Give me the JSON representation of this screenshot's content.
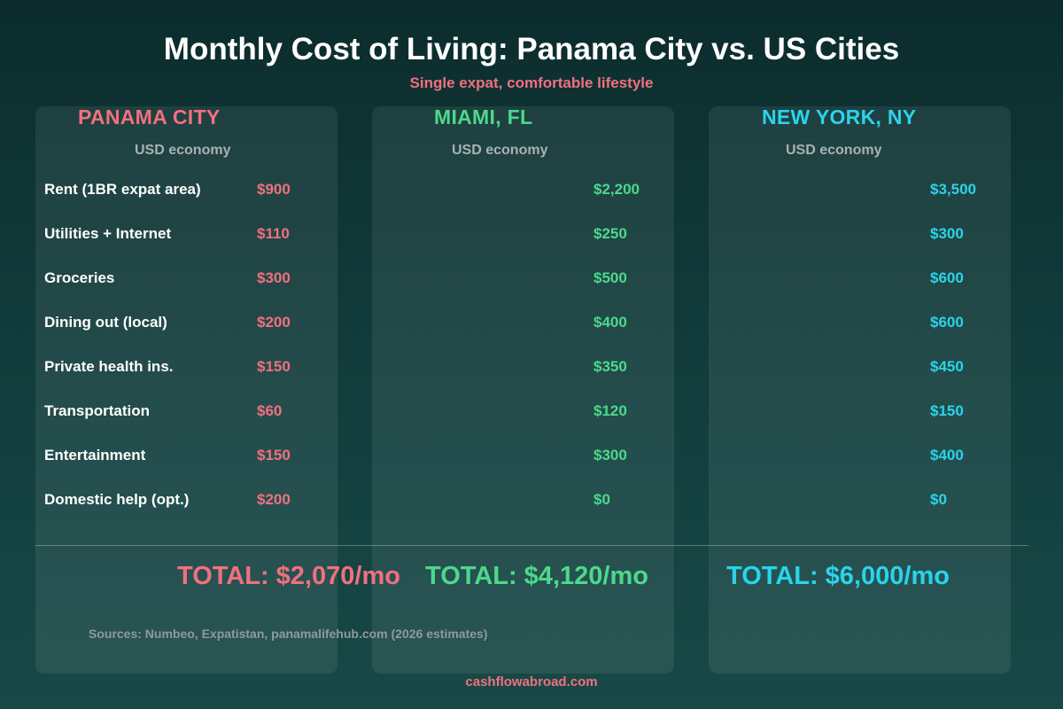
{
  "title": "Monthly Cost of Living: Panama City vs. US Cities",
  "subtitle": "Single expat, comfortable lifestyle",
  "colors": {
    "panama": "#f2707e",
    "miami": "#4cd98a",
    "newyork": "#2ad4ea"
  },
  "chart_data": {
    "type": "table",
    "title": "Monthly Cost of Living: Panama City vs. US Cities",
    "subtitle": "Single expat, comfortable lifestyle",
    "categories": [
      "Rent (1BR expat area)",
      "Utilities + Internet",
      "Groceries",
      "Dining out (local)",
      "Private health ins.",
      "Transportation",
      "Entertainment",
      "Domestic help (opt.)"
    ],
    "series": [
      {
        "name": "PANAMA CITY",
        "note": "USD economy",
        "labels": [
          "$900",
          "$110",
          "$300",
          "$200",
          "$150",
          "$60",
          "$150",
          "$200"
        ],
        "values": [
          900,
          110,
          300,
          200,
          150,
          60,
          150,
          200
        ],
        "total_label": "TOTAL: $2,070/mo",
        "total": 2070
      },
      {
        "name": "MIAMI, FL",
        "note": "USD economy",
        "labels": [
          "$2,200",
          "$250",
          "$500",
          "$400",
          "$350",
          "$120",
          "$300",
          "$0"
        ],
        "values": [
          2200,
          250,
          500,
          400,
          350,
          120,
          300,
          0
        ],
        "total_label": "TOTAL: $4,120/mo",
        "total": 4120
      },
      {
        "name": "NEW YORK, NY",
        "note": "USD economy",
        "labels": [
          "$3,500",
          "$300",
          "$600",
          "$600",
          "$450",
          "$150",
          "$400",
          "$0"
        ],
        "values": [
          3500,
          300,
          600,
          600,
          450,
          150,
          400,
          0
        ],
        "total_label": "TOTAL: $6,000/mo",
        "total": 6000
      }
    ]
  },
  "sources": "Sources: Numbeo, Expatistan, panamalifehub.com (2026 estimates)",
  "footer": "cashflowabroad.com"
}
